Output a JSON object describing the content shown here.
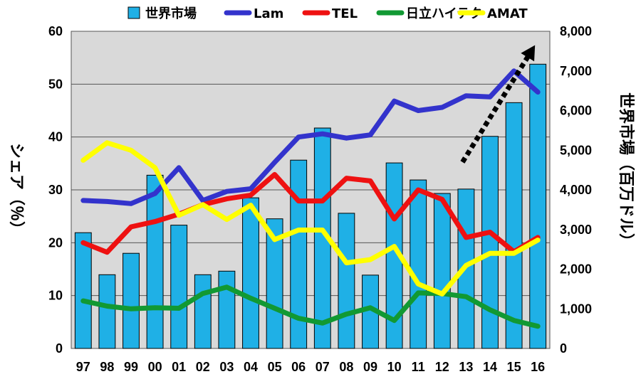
{
  "chart_data": {
    "type": "bar+line",
    "categories": [
      "97",
      "98",
      "99",
      "00",
      "01",
      "02",
      "03",
      "04",
      "05",
      "06",
      "07",
      "08",
      "09",
      "10",
      "11",
      "12",
      "13",
      "14",
      "15",
      "16"
    ],
    "bar_series": {
      "name": "世界市場",
      "axis": "right",
      "color": "#1fb0e6",
      "values": [
        2920,
        1860,
        2400,
        4370,
        3110,
        1860,
        1950,
        3800,
        3270,
        4750,
        5560,
        3410,
        1850,
        4680,
        4250,
        3910,
        4020,
        5350,
        6200,
        7170
      ]
    },
    "line_series": [
      {
        "name": "Lam",
        "axis": "left",
        "color": "#3333cc",
        "values": [
          28.0,
          27.8,
          27.4,
          29.3,
          34.2,
          28.0,
          29.7,
          30.2,
          35.2,
          40.0,
          40.6,
          39.8,
          40.4,
          46.8,
          45.0,
          45.6,
          47.8,
          47.6,
          52.5,
          48.5
        ]
      },
      {
        "name": "TEL",
        "axis": "left",
        "color": "#ee1111",
        "values": [
          20.0,
          18.2,
          23.0,
          24.0,
          25.4,
          27.2,
          28.3,
          29.0,
          32.9,
          27.9,
          27.9,
          32.2,
          31.7,
          24.5,
          30.0,
          28.2,
          21.0,
          22.0,
          18.3,
          21.0
        ]
      },
      {
        "name": "日立ハイテク",
        "axis": "left",
        "color": "#119933",
        "values": [
          9.0,
          8.0,
          7.5,
          7.7,
          7.6,
          10.4,
          11.6,
          9.5,
          7.6,
          5.7,
          4.8,
          6.5,
          7.7,
          5.3,
          10.5,
          10.4,
          9.8,
          7.3,
          5.3,
          4.2
        ]
      },
      {
        "name": "AMAT",
        "axis": "left",
        "color": "#ffff00",
        "values": [
          35.6,
          38.9,
          37.5,
          34.2,
          25.2,
          27.2,
          24.4,
          27.1,
          20.6,
          22.4,
          22.4,
          16.2,
          16.8,
          19.3,
          12.2,
          10.3,
          15.7,
          18.0,
          18.0,
          20.5
        ]
      }
    ],
    "legend": {
      "position": "top",
      "labels": [
        "世界市場",
        "Lam",
        "TEL",
        "日立ハイテク",
        "AMAT"
      ]
    },
    "y_left": {
      "label": "シェア（％）",
      "range": [
        0,
        60
      ],
      "ticks": [
        "0",
        "10",
        "20",
        "30",
        "40",
        "50",
        "60"
      ]
    },
    "y_right": {
      "label": "世界市場（百万ドル）",
      "range": [
        0,
        8000
      ],
      "ticks": [
        "0",
        "1,000",
        "2,000",
        "3,000",
        "4,000",
        "5,000",
        "6,000",
        "7,000",
        "8,000"
      ]
    },
    "grid": true,
    "trend_arrow": {
      "direction": "up-right",
      "style": "dotted",
      "color": "#000000",
      "start": {
        "x": "13",
        "y": 4700
      },
      "end": {
        "x": "16",
        "y": 7650
      }
    }
  }
}
